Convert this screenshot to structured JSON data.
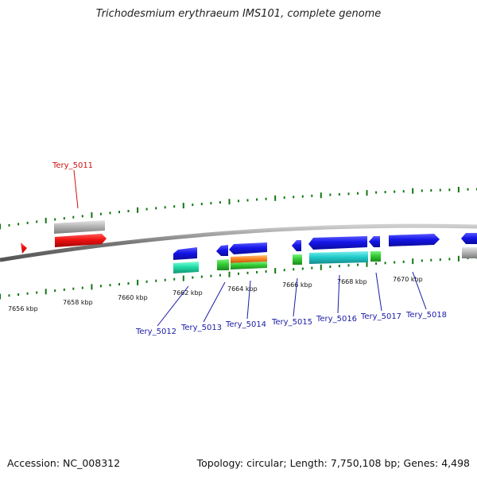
{
  "title": "Trichodesmium erythraeum IMS101, complete genome",
  "footer": {
    "accession": "Accession: NC_008312",
    "topology": "Topology: circular; Length: 7,750,108 bp; Genes: 4,498"
  },
  "ticks": [
    {
      "id": "7656",
      "label": "7656 kbp"
    },
    {
      "id": "7658",
      "label": "7658 kbp"
    },
    {
      "id": "7660",
      "label": "7660 kbp"
    },
    {
      "id": "7662",
      "label": "7662 kbp"
    },
    {
      "id": "7664",
      "label": "7664 kbp"
    },
    {
      "id": "7666",
      "label": "7666 kbp"
    },
    {
      "id": "7668",
      "label": "7668 kbp"
    },
    {
      "id": "7670",
      "label": "7670 kbp"
    }
  ],
  "genes": [
    {
      "id": "Tery_5011",
      "label": "Tery_5011",
      "color": "#cc1111"
    },
    {
      "id": "Tery_5012",
      "label": "Tery_5012",
      "color": "#1a1aa6"
    },
    {
      "id": "Tery_5013",
      "label": "Tery_5013",
      "color": "#1a1aa6"
    },
    {
      "id": "Tery_5014",
      "label": "Tery_5014",
      "color": "#1a1aa6"
    },
    {
      "id": "Tery_5015",
      "label": "Tery_5015",
      "color": "#1a1aa6"
    },
    {
      "id": "Tery_5016",
      "label": "Tery_5016",
      "color": "#1a1aa6"
    },
    {
      "id": "Tery_5017",
      "label": "Tery_5017",
      "color": "#1a1aa6"
    },
    {
      "id": "Tery_5018",
      "label": "Tery_5018",
      "color": "#1a1aa6"
    }
  ],
  "colors": {
    "cds_forward": "#2222ee",
    "cds_reverse_partial": "#ee1111",
    "trna": "#33cc33",
    "feature_cyan": "#22cccc",
    "feature_teal": "#22ddaa",
    "feature_orange": "#ff8822",
    "feature_grey": "#aaaaaa",
    "backbone": "#777777",
    "tick": "#117711"
  }
}
